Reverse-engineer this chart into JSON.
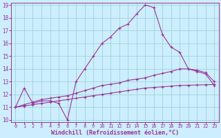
{
  "xlabel": "Windchill (Refroidissement éolien,°C)",
  "bg_color": "#cceeff",
  "grid_color": "#99cccc",
  "line_color": "#993399",
  "xlim": [
    -0.5,
    23.5
  ],
  "ylim": [
    9.85,
    19.15
  ],
  "xticks": [
    0,
    1,
    2,
    3,
    4,
    5,
    6,
    7,
    8,
    9,
    10,
    11,
    12,
    13,
    14,
    15,
    16,
    17,
    18,
    19,
    20,
    21,
    22,
    23
  ],
  "yticks": [
    10,
    11,
    12,
    13,
    14,
    15,
    16,
    17,
    18,
    19
  ],
  "line1_x": [
    0,
    1,
    2,
    3,
    4,
    5,
    6,
    7,
    8,
    9,
    10,
    11,
    12,
    13,
    14,
    15,
    16,
    17,
    18,
    19,
    20,
    21,
    22,
    23
  ],
  "line1_y": [
    11.0,
    12.5,
    11.3,
    11.5,
    11.5,
    11.3,
    10.0,
    13.0,
    14.0,
    15.0,
    16.0,
    16.5,
    17.2,
    17.5,
    18.3,
    19.0,
    18.8,
    16.7,
    15.7,
    15.3,
    14.0,
    13.8,
    13.6,
    12.7
  ],
  "line2_x": [
    0,
    1,
    2,
    3,
    4,
    5,
    6,
    7,
    8,
    9,
    10,
    11,
    12,
    13,
    14,
    15,
    16,
    17,
    18,
    19,
    20,
    21,
    22,
    23
  ],
  "line2_y": [
    11.0,
    11.1,
    11.2,
    11.3,
    11.4,
    11.5,
    11.6,
    11.7,
    11.8,
    11.9,
    12.0,
    12.1,
    12.2,
    12.3,
    12.4,
    12.5,
    12.55,
    12.6,
    12.65,
    12.7,
    12.72,
    12.74,
    12.76,
    12.78
  ],
  "line3_x": [
    0,
    1,
    2,
    3,
    4,
    5,
    6,
    7,
    8,
    9,
    10,
    11,
    12,
    13,
    14,
    15,
    16,
    17,
    18,
    19,
    20,
    21,
    22,
    23
  ],
  "line3_y": [
    11.0,
    11.2,
    11.4,
    11.6,
    11.7,
    11.8,
    11.9,
    12.1,
    12.3,
    12.5,
    12.7,
    12.8,
    12.9,
    13.1,
    13.2,
    13.3,
    13.5,
    13.65,
    13.8,
    14.0,
    14.0,
    13.9,
    13.7,
    13.0
  ],
  "marker": "+",
  "markersize": 3,
  "linewidth": 0.8
}
